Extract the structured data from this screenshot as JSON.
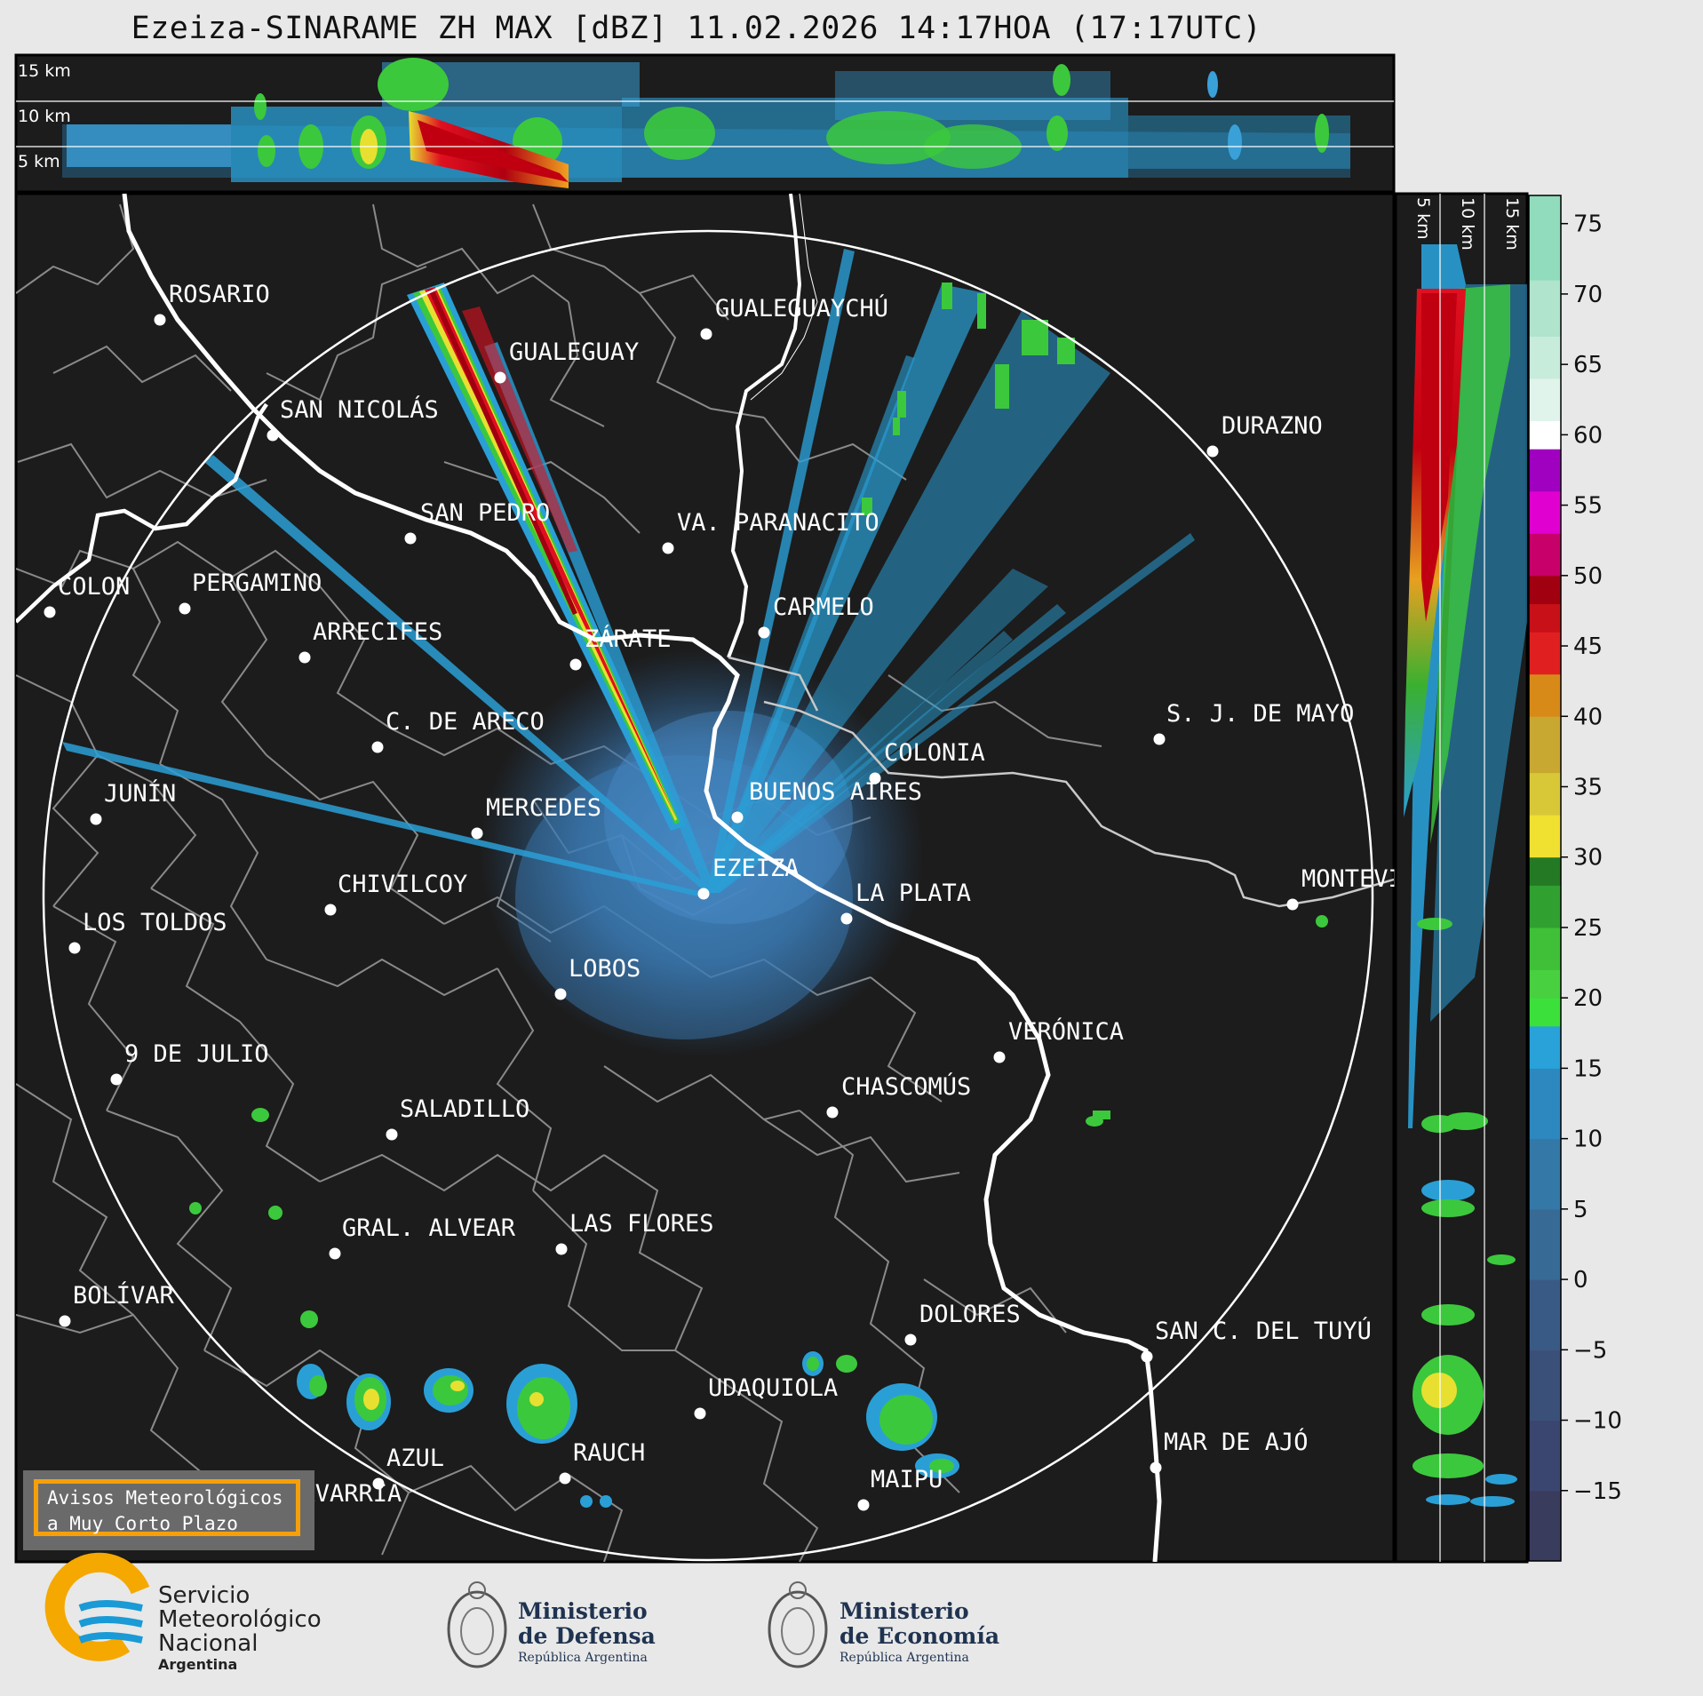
{
  "title": "Ezeiza-SINARAME ZH MAX [dBZ] 11.02.2026 14:17HOA (17:17UTC)",
  "top_panel": {
    "height_labels": [
      "15 km",
      "10 km",
      "5 km"
    ]
  },
  "side_panel": {
    "height_labels": [
      "5 km",
      "10 km",
      "15 km"
    ]
  },
  "colorbar": {
    "unit": "dBZ",
    "ticks": [
      "75",
      "70",
      "65",
      "60",
      "55",
      "50",
      "45",
      "40",
      "35",
      "30",
      "25",
      "20",
      "15",
      "10",
      "5",
      "0",
      "−5",
      "−10",
      "−15"
    ],
    "tick_values": [
      75,
      70,
      65,
      60,
      55,
      50,
      45,
      40,
      35,
      30,
      25,
      20,
      15,
      10,
      5,
      0,
      -5,
      -10,
      -15
    ],
    "range": [
      -20,
      77
    ]
  },
  "cities": [
    {
      "name": "ROSARIO"
    },
    {
      "name": "GUALEGUAYCHÚ"
    },
    {
      "name": "GUALEGUAY"
    },
    {
      "name": "SAN NICOLÁS"
    },
    {
      "name": "DURAZNO"
    },
    {
      "name": "SAN PEDRO"
    },
    {
      "name": "VA. PARANACITO"
    },
    {
      "name": "COLON"
    },
    {
      "name": "PERGAMINO"
    },
    {
      "name": "CARMELO"
    },
    {
      "name": "ARRECIFES"
    },
    {
      "name": "ZÁRATE"
    },
    {
      "name": "S. J. DE MAYO"
    },
    {
      "name": "C. DE ARECO"
    },
    {
      "name": "COLONIA"
    },
    {
      "name": "JUNÍN"
    },
    {
      "name": "BUENOS AIRES"
    },
    {
      "name": "MERCEDES"
    },
    {
      "name": "MONTEVIDEO"
    },
    {
      "name": "EZEIZA"
    },
    {
      "name": "CHIVILCOY"
    },
    {
      "name": "LA PLATA"
    },
    {
      "name": "LOS TOLDOS"
    },
    {
      "name": "LOBOS"
    },
    {
      "name": "VERÓNICA"
    },
    {
      "name": "9 DE JULIO"
    },
    {
      "name": "CHASCOMÚS"
    },
    {
      "name": "SALADILLO"
    },
    {
      "name": "GRAL. ALVEAR"
    },
    {
      "name": "LAS FLORES"
    },
    {
      "name": "BOLÍVAR"
    },
    {
      "name": "DOLORES"
    },
    {
      "name": "SAN C. DEL TUYÚ"
    },
    {
      "name": "UDAQUIOLA"
    },
    {
      "name": "MAR DE AJÓ"
    },
    {
      "name": "AZUL"
    },
    {
      "name": "RAUCH"
    },
    {
      "name": "MAIPU"
    },
    {
      "name": "OLAVARRÍA"
    }
  ],
  "warning": {
    "line1": "Avisos Meteorológicos",
    "line2": "a Muy Corto Plazo"
  },
  "footer": {
    "smn_line1": "Servicio",
    "smn_line2": "Meteorológico",
    "smn_line3": "Nacional",
    "smn_line4": "Argentina",
    "defensa_line1": "Ministerio",
    "defensa_line2": "de Defensa",
    "defensa_line3": "República Argentina",
    "economia_line1": "Ministerio",
    "economia_line2": "de Economía",
    "economia_line3": "República Argentina"
  },
  "colors": {
    "background": "#1c1c1c",
    "range_ring": "#ffffff",
    "coast": "#ffffff",
    "borders": "#8a8a8a",
    "warning_border": "#f5a00a",
    "smn_orange": "#f5a800",
    "smn_blue": "#1a9ad6"
  }
}
